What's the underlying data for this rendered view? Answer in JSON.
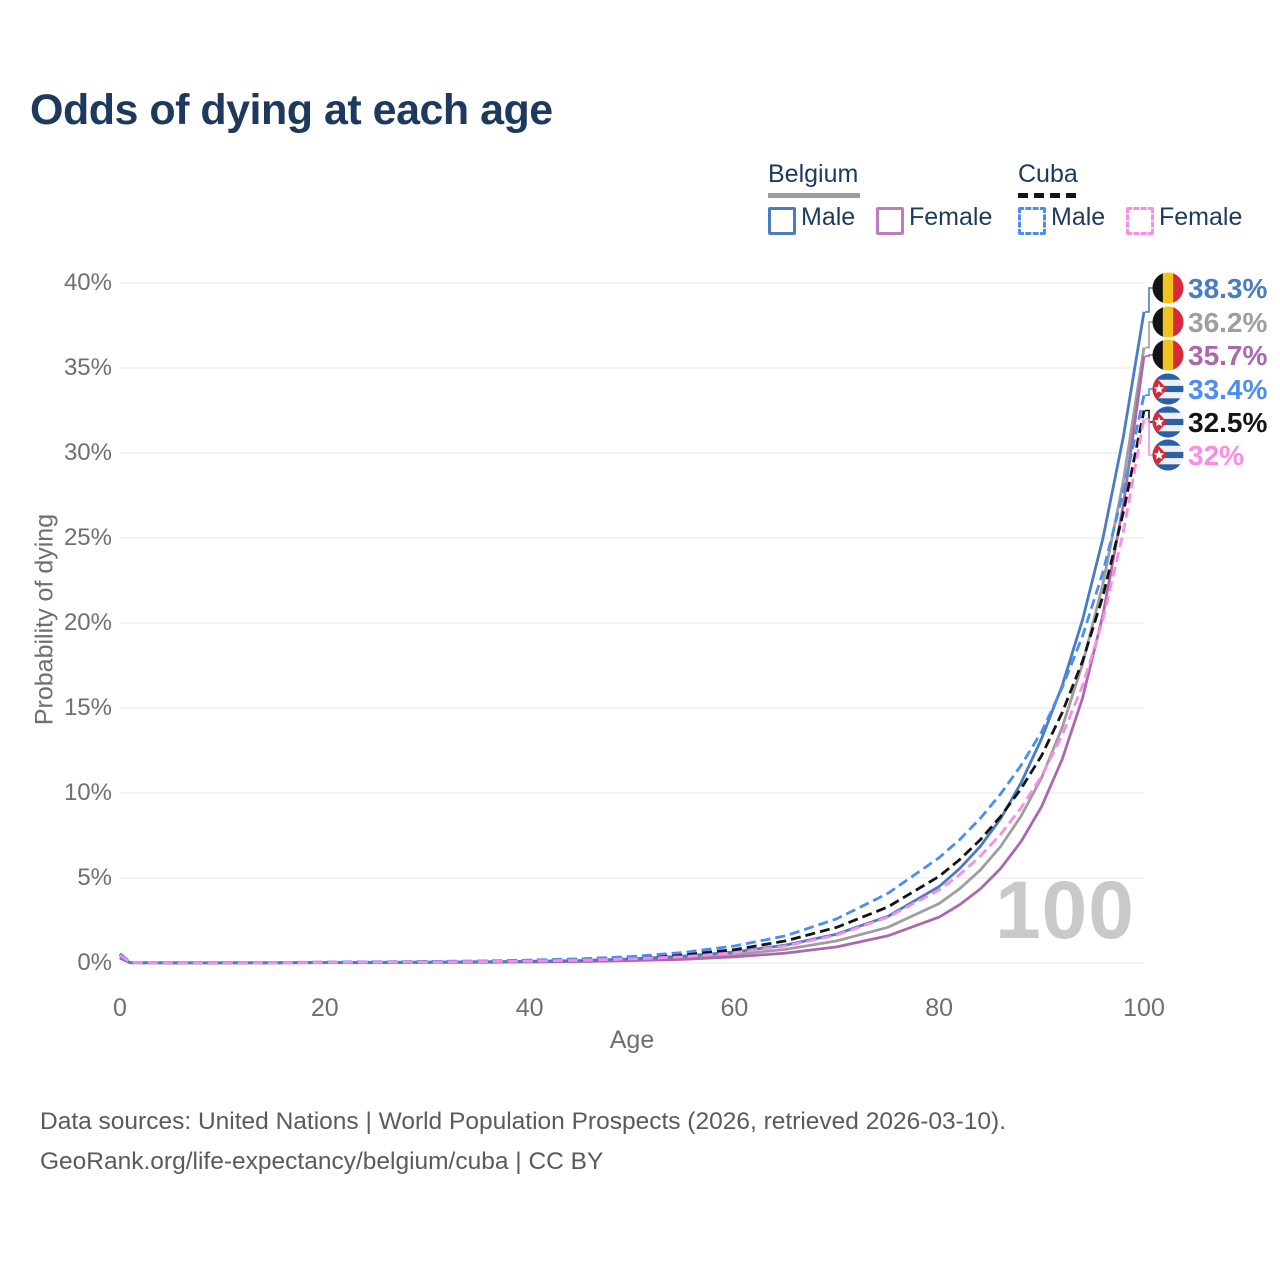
{
  "page": {
    "title": "Odds of dying at each age",
    "watermark": "100",
    "footer_line1": "Data sources: United Nations | World Population Prospects (2026, retrieved 2026-03-10).",
    "footer_line2": "GeoRank.org/life-expectancy/belgium/cuba | CC BY"
  },
  "colors": {
    "title_text": "#1d3a5e",
    "tick_text": "#6f6f6f",
    "gridline": "#e9e9e9",
    "watermark": "#c9c9c9",
    "belgium_male": "#4a7cc2",
    "belgium_all": "#9e9e9e",
    "belgium_female": "#ab68b0",
    "cuba_male": "#4c8df2",
    "cuba_all": "#141414",
    "cuba_female": "#fa8ce8"
  },
  "legend": {
    "groups": [
      {
        "label": "Belgium",
        "line_style": "solid",
        "line_color": "#9e9e9e",
        "items": [
          {
            "label": "Male",
            "color": "#4a7cc2",
            "dashed": false
          },
          {
            "label": "Female",
            "color": "#bc7ebf",
            "dashed": false
          }
        ]
      },
      {
        "label": "Cuba",
        "line_style": "dashed",
        "line_color": "#141414",
        "items": [
          {
            "label": "Male",
            "color": "#4c8df2",
            "dashed": true
          },
          {
            "label": "Female",
            "color": "#fa8ce8",
            "dashed": true
          }
        ]
      }
    ]
  },
  "chart_data": {
    "type": "line",
    "title": "Odds of dying at each age",
    "xlabel": "Age",
    "ylabel": "Probability of dying",
    "xlim": [
      0,
      100
    ],
    "ylim": [
      0,
      40
    ],
    "grid": "horizontal",
    "legend_position": "top-right",
    "x_ticks": [
      0,
      20,
      40,
      60,
      80,
      100
    ],
    "y_ticks": [
      0,
      5,
      10,
      15,
      20,
      25,
      30,
      35,
      40
    ],
    "y_tick_labels": [
      "0%",
      "5%",
      "10%",
      "15%",
      "20%",
      "25%",
      "30%",
      "35%",
      "40%"
    ],
    "x": [
      0,
      1,
      5,
      10,
      15,
      20,
      25,
      30,
      35,
      40,
      45,
      50,
      55,
      60,
      65,
      70,
      75,
      80,
      82,
      84,
      86,
      88,
      90,
      92,
      94,
      96,
      98,
      100
    ],
    "series": [
      {
        "name": "Belgium Male",
        "country": "Belgium",
        "sex": "male",
        "flag": "belgium",
        "color": "#4a7cc2",
        "dashed": false,
        "draw_order": 3,
        "end_value": 38.3,
        "end_label": "38.3%",
        "values": [
          0.35,
          0.02,
          0.01,
          0.01,
          0.015,
          0.03,
          0.04,
          0.05,
          0.07,
          0.1,
          0.15,
          0.24,
          0.4,
          0.65,
          1.05,
          1.7,
          2.75,
          4.5,
          5.55,
          6.85,
          8.49,
          10.6,
          13.2,
          16.3,
          20.2,
          25.0,
          31.0,
          38.3
        ]
      },
      {
        "name": "Belgium",
        "country": "Belgium",
        "sex": "all",
        "flag": "belgium",
        "color": "#9e9e9e",
        "dashed": false,
        "draw_order": 1,
        "end_value": 36.2,
        "end_label": "36.2%",
        "values": [
          0.3,
          0.018,
          0.009,
          0.009,
          0.012,
          0.022,
          0.03,
          0.04,
          0.055,
          0.08,
          0.12,
          0.19,
          0.3,
          0.5,
          0.8,
          1.3,
          2.1,
          3.5,
          4.37,
          5.46,
          6.85,
          8.64,
          10.9,
          13.84,
          17.6,
          22.3,
          28.4,
          36.2
        ]
      },
      {
        "name": "Belgium Female",
        "country": "Belgium",
        "sex": "female",
        "flag": "belgium",
        "color": "#ab68b0",
        "dashed": false,
        "draw_order": 2,
        "end_value": 35.7,
        "end_label": "35.7%",
        "values": [
          0.28,
          0.015,
          0.008,
          0.008,
          0.01,
          0.015,
          0.02,
          0.03,
          0.04,
          0.06,
          0.09,
          0.14,
          0.22,
          0.36,
          0.58,
          0.95,
          1.6,
          2.7,
          3.43,
          4.35,
          5.56,
          7.15,
          9.2,
          11.97,
          15.6,
          20.5,
          27.0,
          35.7
        ]
      },
      {
        "name": "Cuba Male",
        "country": "Cuba",
        "sex": "male",
        "flag": "cuba",
        "color": "#4c8df2",
        "dashed": true,
        "draw_order": 5,
        "end_value": 33.4,
        "end_label": "33.4%",
        "values": [
          0.55,
          0.04,
          0.02,
          0.02,
          0.03,
          0.05,
          0.07,
          0.09,
          0.12,
          0.17,
          0.25,
          0.38,
          0.62,
          1.0,
          1.6,
          2.6,
          4.1,
          6.2,
          7.26,
          8.5,
          9.95,
          11.63,
          13.6,
          16.18,
          19.25,
          23.0,
          27.8,
          33.4
        ]
      },
      {
        "name": "Cuba",
        "country": "Cuba",
        "sex": "all",
        "flag": "cuba",
        "color": "#141414",
        "dashed": true,
        "draw_order": 4,
        "end_value": 32.5,
        "end_label": "32.5%",
        "values": [
          0.5,
          0.037,
          0.018,
          0.018,
          0.025,
          0.04,
          0.055,
          0.075,
          0.1,
          0.14,
          0.2,
          0.3,
          0.48,
          0.78,
          1.3,
          2.1,
          3.3,
          5.1,
          6.08,
          7.24,
          8.62,
          10.26,
          12.2,
          14.72,
          17.76,
          21.6,
          26.55,
          32.5
        ]
      },
      {
        "name": "Cuba Female",
        "country": "Cuba",
        "sex": "female",
        "flag": "cuba",
        "color": "#fa8ce8",
        "dashed": true,
        "draw_order": 6,
        "end_value": 32.0,
        "end_label": "32%",
        "values": [
          0.45,
          0.035,
          0.015,
          0.015,
          0.02,
          0.03,
          0.04,
          0.055,
          0.075,
          0.11,
          0.16,
          0.24,
          0.37,
          0.6,
          1.0,
          1.65,
          2.7,
          4.3,
          5.2,
          6.28,
          7.57,
          9.13,
          11.0,
          13.39,
          16.32,
          20.2,
          25.4,
          32.0
        ]
      }
    ]
  }
}
